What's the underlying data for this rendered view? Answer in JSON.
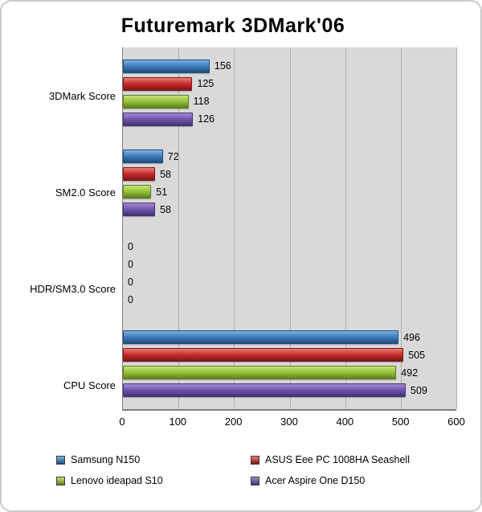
{
  "chart_data": {
    "type": "bar",
    "orientation": "horizontal",
    "title": "Futuremark 3DMark'06",
    "categories": [
      "3DMark Score",
      "SM2.0 Score",
      "HDR/SM3.0 Score",
      "CPU Score"
    ],
    "series": [
      {
        "name": "Samsung N150",
        "values": [
          156,
          72,
          0,
          496
        ],
        "color": "#3d79b8",
        "color_light": "#7fb0e0",
        "color_dark": "#1f4d7e"
      },
      {
        "name": "ASUS Eee PC 1008HA Seashell",
        "values": [
          125,
          58,
          0,
          505
        ],
        "color": "#c42a2a",
        "color_light": "#e87c74",
        "color_dark": "#7e1717"
      },
      {
        "name": "Lenovo ideapad S10",
        "values": [
          118,
          51,
          0,
          492
        ],
        "color": "#96c23a",
        "color_light": "#c6e274",
        "color_dark": "#5e7d1f"
      },
      {
        "name": "Acer Aspire One D150",
        "values": [
          126,
          58,
          0,
          509
        ],
        "color": "#6f54ae",
        "color_light": "#a18ad0",
        "color_dark": "#443273"
      }
    ],
    "xlim": [
      0,
      600
    ],
    "xticks": [
      0,
      100,
      200,
      300,
      400,
      500,
      600
    ],
    "grid": true,
    "legend_position": "bottom",
    "plot_background": "#d9d9d9",
    "gridline_color": "#aeaeae"
  }
}
